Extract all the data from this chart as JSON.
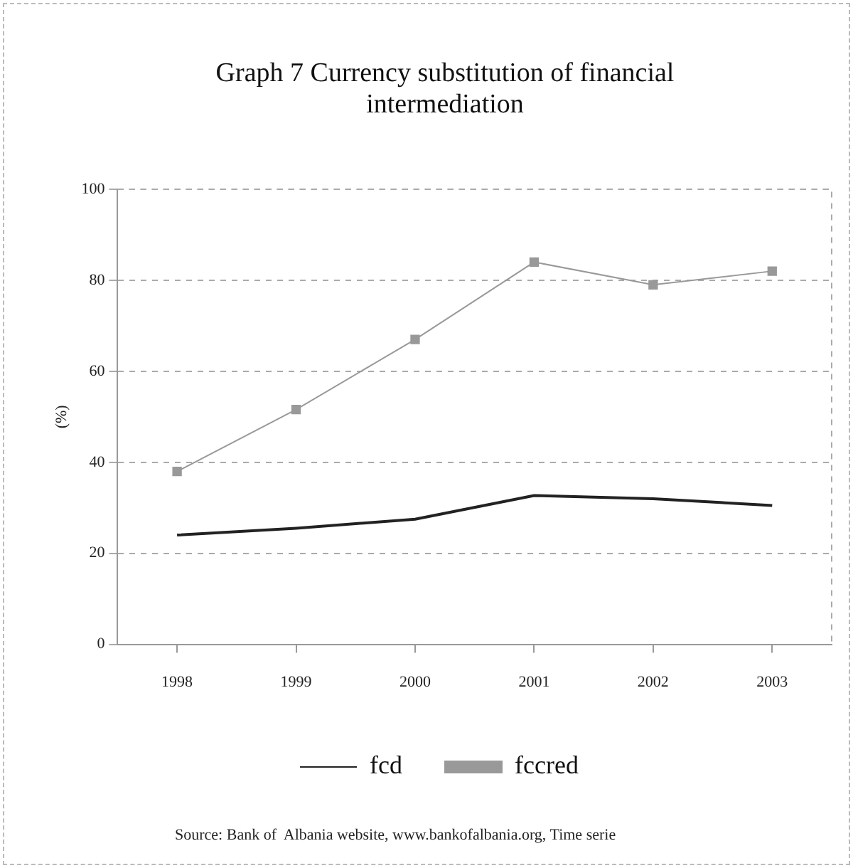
{
  "chart_data": {
    "type": "line",
    "title": "Graph 7 Currency substitution of financial intermediation",
    "ylabel": "(%)",
    "categories": [
      "1998",
      "1999",
      "2000",
      "2001",
      "2002",
      "2003"
    ],
    "series": [
      {
        "name": "fcd",
        "color": "#222222",
        "marker": "none",
        "values": [
          24,
          25.5,
          27.5,
          32.7,
          32,
          30.5
        ]
      },
      {
        "name": "fccred",
        "color": "#999999",
        "marker": "square",
        "values": [
          38,
          51.6,
          67,
          84,
          79,
          82
        ]
      }
    ],
    "ylim": [
      0,
      100
    ],
    "yticks": [
      0,
      20,
      40,
      60,
      80,
      100
    ],
    "grid": true,
    "line_style": "solid",
    "legend": "bottom",
    "annotations": [
      "Source: Bank of  Albania website, www.bankofalbania.org, Time serie"
    ]
  }
}
